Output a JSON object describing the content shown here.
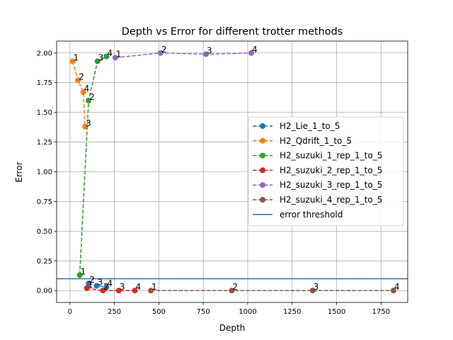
{
  "chart_data": {
    "type": "line",
    "title": "Depth vs Error for different trotter methods",
    "xlabel": "Depth",
    "ylabel": "Error",
    "xlim": [
      -75,
      1900
    ],
    "ylim": [
      -0.1,
      2.1
    ],
    "xticks": [
      0,
      250,
      500,
      750,
      1000,
      1250,
      1500,
      1750
    ],
    "yticks": [
      0.0,
      0.25,
      0.5,
      0.75,
      1.0,
      1.25,
      1.5,
      1.75,
      2.0
    ],
    "xtick_labels": [
      "0",
      "250",
      "500",
      "750",
      "1000",
      "1250",
      "1500",
      "1750"
    ],
    "ytick_labels": [
      "0.00",
      "0.25",
      "0.50",
      "0.75",
      "1.00",
      "1.25",
      "1.50",
      "1.75",
      "2.00"
    ],
    "grid": true,
    "legend_position": "center-right",
    "threshold": {
      "name": "error threshold",
      "y": 0.1,
      "color": "#1f77b4"
    },
    "series": [
      {
        "name": "H2_Lie_1_to_5",
        "color": "#1f77b4",
        "x": [
          105,
          150,
          205
        ],
        "y": [
          0.06,
          0.04,
          0.03
        ],
        "labels": [
          "2",
          "3",
          "4"
        ]
      },
      {
        "name": "H2_Qdrift_1_to_5",
        "color": "#ff7f0e",
        "x": [
          15,
          45,
          75,
          85
        ],
        "y": [
          1.93,
          1.77,
          1.67,
          1.38
        ],
        "labels": [
          "1",
          "2",
          "4",
          "3"
        ]
      },
      {
        "name": "H2_suzuki_1_rep_1_to_5",
        "color": "#2ca02c",
        "x": [
          55,
          105,
          155,
          205
        ],
        "y": [
          0.13,
          1.6,
          1.93,
          1.97
        ],
        "labels": [
          "1",
          "2",
          "3",
          "4"
        ]
      },
      {
        "name": "H2_suzuki_2_rep_1_to_5",
        "color": "#d62728",
        "x": [
          95,
          185,
          275,
          365
        ],
        "y": [
          0.02,
          0.0,
          0.0,
          0.0
        ],
        "labels": [
          "1",
          "2",
          "3",
          "4"
        ]
      },
      {
        "name": "H2_suzuki_3_rep_1_to_5",
        "color": "#9467bd",
        "x": [
          255,
          510,
          765,
          1020
        ],
        "y": [
          1.96,
          2.0,
          1.99,
          2.0
        ],
        "labels": [
          "1",
          "2",
          "3",
          "4"
        ]
      },
      {
        "name": "H2_suzuki_4_rep_1_to_5",
        "color": "#8c564b",
        "x": [
          455,
          910,
          1365,
          1820
        ],
        "y": [
          0.0,
          0.0,
          0.0,
          0.0
        ],
        "labels": [
          "1",
          "2",
          "3",
          "4"
        ]
      }
    ]
  }
}
